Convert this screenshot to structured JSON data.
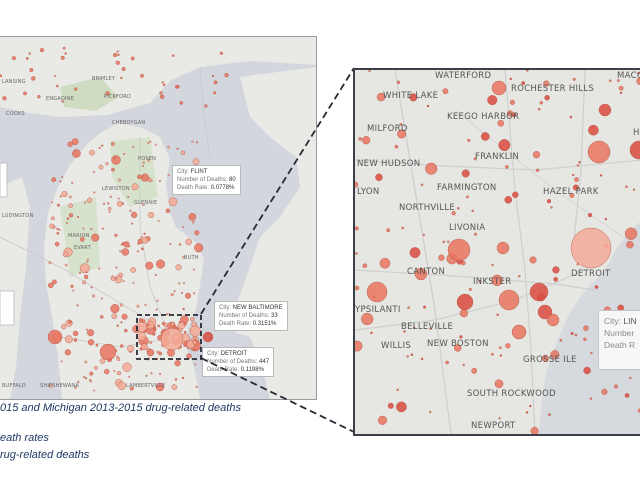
{
  "left_map": {
    "places": [
      "LANSING",
      "BRIMLEY",
      "ENGADINE",
      "PICKFORD",
      "COOKS",
      "CHEBOYGAN",
      "POSEN",
      "LEWISTON",
      "GLENNIE",
      "MARION",
      "LUDINGTON",
      "EVART",
      "BUTH",
      "SHIPSHEWANA",
      "BUFFALO",
      "LAMBERTVILLE"
    ],
    "tooltips": [
      {
        "city_label": "City:",
        "city": "FLINT",
        "deaths_label": "Number of Deaths:",
        "deaths": "80",
        "rate_label": "Death Rate:",
        "rate": "0.0778%"
      },
      {
        "city_label": "City:",
        "city": "NEW BALTIMORE",
        "deaths_label": "Number of Deaths:",
        "deaths": "33",
        "rate_label": "Death Rate:",
        "rate": "0.3151%"
      },
      {
        "city_label": "City:",
        "city": "DETROIT",
        "deaths_label": "Number of Deaths:",
        "deaths": "447",
        "rate_label": "Death Rate:",
        "rate": "0.1198%"
      }
    ]
  },
  "right_map": {
    "places": [
      "WATERFORD",
      "MACO",
      "WHITE LAKE",
      "ROCHESTER HILLS",
      "KEEGO HARBOR",
      "MILFORD",
      "HA",
      "NEW HUDSON",
      "FRANKLIN",
      "FARMINGTON",
      "HAZEL PARK",
      "LYON",
      "NORTHVILLE",
      "LIVONIA",
      "CANTON",
      "INKSTER",
      "DETROIT",
      "YPSILANTI",
      "BELLEVILLE",
      "WILLIS",
      "NEW BOSTON",
      "GROSSE ILE",
      "SOUTH ROCKWOOD",
      "NEWPORT"
    ],
    "tooltip": {
      "city_label": "City:",
      "city": "LIN",
      "deaths_label": "Number",
      "rate_label": "Death R"
    }
  },
  "caption": {
    "line1": "015 and Michigan 2013-2015 drug-related deaths",
    "line2": "eath rates",
    "line3": "rug-related deaths"
  },
  "colors": {
    "land": "#e9e9e6",
    "water": "#d3d6dc",
    "bubble": "#e8735f",
    "bubble_dark": "#d94a3e",
    "bubble_light": "#f3aa96",
    "frame": "#3a3f4a",
    "caption": "#1f3864"
  }
}
